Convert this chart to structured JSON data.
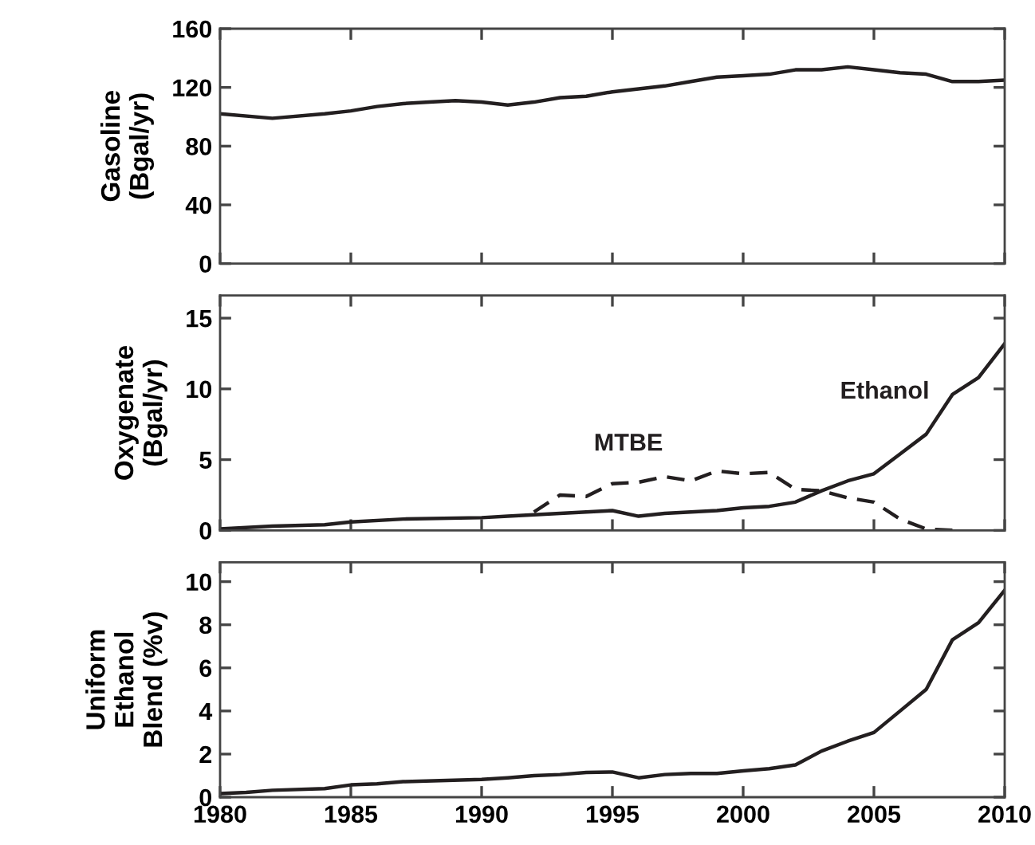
{
  "chart_data": [
    {
      "type": "line",
      "ylabel": "Gasoline\n(Bgal/yr)",
      "x": [
        1980,
        1982,
        1984,
        1985,
        1986,
        1987,
        1988,
        1989,
        1990,
        1991,
        1992,
        1993,
        1994,
        1995,
        1996,
        1997,
        1998,
        1999,
        2000,
        2001,
        2002,
        2003,
        2004,
        2005,
        2006,
        2007,
        2008,
        2009,
        2010
      ],
      "series": [
        {
          "color": "#231f20",
          "values": [
            102,
            99,
            102,
            104,
            107,
            109,
            110,
            111,
            110,
            108,
            110,
            113,
            114,
            117,
            119,
            121,
            124,
            127,
            128,
            129,
            132,
            132,
            134,
            132,
            130,
            129,
            124,
            124,
            125
          ]
        }
      ],
      "xlim": [
        1980,
        2010
      ],
      "xticks": [
        1980,
        1985,
        1990,
        1995,
        2000,
        2005,
        2010
      ],
      "ylim": [
        0,
        160
      ],
      "yticks": [
        0,
        40,
        80,
        120,
        160
      ],
      "tick_labels": "y",
      "line_style": "solid"
    },
    {
      "type": "line",
      "ylabel": "Oxygenate\n(Bgal/yr)",
      "x": [
        1980,
        1982,
        1984,
        1985,
        1987,
        1990,
        1991,
        1992,
        1993,
        1994,
        1995,
        1996,
        1997,
        1998,
        1999,
        2000,
        2001,
        2002,
        2003,
        2004,
        2005,
        2006,
        2007,
        2008,
        2009,
        2010
      ],
      "series": [
        {
          "name": "Ethanol",
          "color": "#231f20",
          "line_style": "solid",
          "values": [
            0.1,
            0.3,
            0.4,
            0.6,
            0.8,
            0.9,
            1.0,
            1.1,
            1.2,
            1.3,
            1.4,
            1.0,
            1.2,
            1.3,
            1.4,
            1.6,
            1.7,
            2.0,
            2.8,
            3.5,
            4.0,
            5.4,
            6.8,
            9.6,
            10.8,
            13.2
          ]
        },
        {
          "name": "MTBE",
          "color": "#231f20",
          "line_style": "dashed",
          "x": [
            1992,
            1993,
            1994,
            1995,
            1996,
            1997,
            1998,
            1999,
            2000,
            2001,
            2002,
            2003,
            2004,
            2005,
            2006,
            2007,
            2008
          ],
          "values": [
            1.3,
            2.5,
            2.4,
            3.3,
            3.4,
            3.8,
            3.5,
            4.2,
            4.0,
            4.1,
            2.9,
            2.8,
            2.3,
            2.0,
            0.8,
            0.1,
            0
          ]
        }
      ],
      "xlim": [
        1980,
        2010
      ],
      "xticks": [
        1980,
        1985,
        1990,
        1995,
        2000,
        2005,
        2010
      ],
      "ylim": [
        0,
        16.6
      ],
      "yticks": [
        0,
        5,
        10,
        15
      ],
      "tick_labels": "y"
    },
    {
      "type": "line",
      "ylabel": "Uniform\nEthanol\nBlend (%v)",
      "x": [
        1980,
        1981,
        1982,
        1984,
        1985,
        1986,
        1987,
        1990,
        1991,
        1992,
        1993,
        1994,
        1995,
        1996,
        1997,
        1998,
        1999,
        2000,
        2001,
        2002,
        2003,
        2004,
        2005,
        2006,
        2007,
        2008,
        2009,
        2010
      ],
      "series": [
        {
          "color": "#231f20",
          "values": [
            0.17,
            0.22,
            0.32,
            0.4,
            0.57,
            0.62,
            0.72,
            0.82,
            0.9,
            1.0,
            1.05,
            1.15,
            1.17,
            0.9,
            1.05,
            1.1,
            1.1,
            1.22,
            1.32,
            1.5,
            2.14,
            2.6,
            3.0,
            4.0,
            5.0,
            7.3,
            8.1,
            9.6
          ]
        }
      ],
      "xlim": [
        1980,
        2010
      ],
      "xticks": [
        1980,
        1985,
        1990,
        1995,
        2000,
        2005,
        2010
      ],
      "ylim": [
        0,
        10.9
      ],
      "yticks": [
        0,
        2,
        4,
        6,
        8,
        10
      ],
      "line_style": "solid"
    }
  ]
}
